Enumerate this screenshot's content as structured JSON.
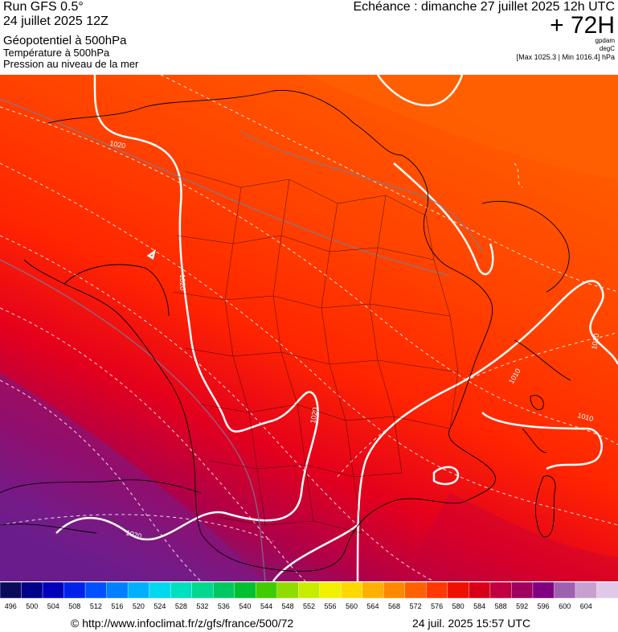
{
  "header": {
    "model": "Run GFS 0.5°",
    "run": "24 juillet 2025 12Z",
    "field_1": "Géopotentiel à 500hPa",
    "field_2": "Température à 500hPa",
    "field_3": "Pression au niveau de la mer",
    "echeance": "Echéance : dimanche 27 juillet 2025 12h UTC",
    "step": "+ 72H",
    "unit_1": "gpdam",
    "unit_2": "degC",
    "minmax": "[Max 1025.3 | Min 1016.4] hPa"
  },
  "isobar_labels": [
    "1020",
    "1020",
    "1020",
    "1020",
    "1010",
    "1010",
    "1010"
  ],
  "scale": {
    "values": [
      "496",
      "500",
      "504",
      "508",
      "512",
      "516",
      "520",
      "524",
      "528",
      "532",
      "536",
      "540",
      "544",
      "548",
      "552",
      "556",
      "560",
      "564",
      "568",
      "572",
      "576",
      "580",
      "584",
      "588",
      "592",
      "596",
      "600",
      "604"
    ],
    "colors": [
      "#0b0b5c",
      "#000088",
      "#0000bb",
      "#0022e8",
      "#0050ff",
      "#0080ff",
      "#00b0ff",
      "#00d8f0",
      "#00e0c0",
      "#00d890",
      "#00c860",
      "#00c030",
      "#40cc00",
      "#90dc00",
      "#c8ec00",
      "#f0f000",
      "#ffd800",
      "#ffb000",
      "#ff8800",
      "#ff6000",
      "#ff3800",
      "#f01000",
      "#d80018",
      "#c00040",
      "#a00060",
      "#800080",
      "#a060b0",
      "#c8a0d0",
      "#e0c8e8"
    ]
  },
  "footer": {
    "url": "© http://www.infoclimat.fr/z/gfs/france/500/72",
    "timestamp": "24 juil. 2025 15:57 UTC"
  },
  "colors": {
    "band_orange": "#ff5a00",
    "band_red": "#ff2a00",
    "band_crimson": "#c8003a",
    "band_purple": "#6a1d8a",
    "isobar": "#ffffff",
    "border": "#000000"
  }
}
